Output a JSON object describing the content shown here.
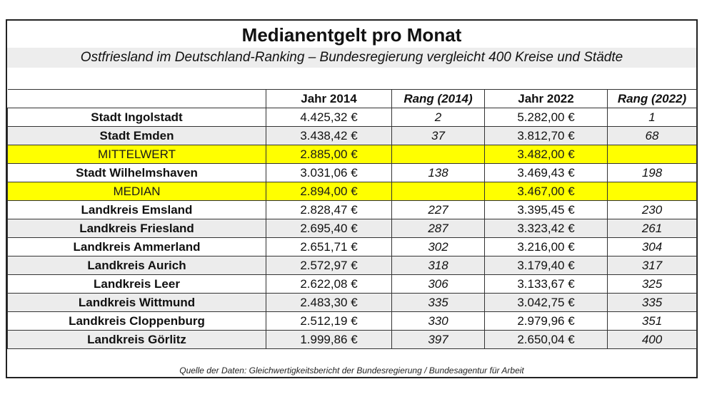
{
  "title": "Medianentgelt pro Monat",
  "subtitle": "Ostfriesland im Deutschland-Ranking – Bundesregierung vergleicht 400 Kreise und Städte",
  "headers": [
    "",
    "Jahr 2014",
    "Rang (2014)",
    "Jahr 2022",
    "Rang (2022)"
  ],
  "rows": [
    {
      "name": "Stadt Ingolstadt",
      "y2014": "4.425,32 €",
      "r2014": "2",
      "y2022": "5.282,00 €",
      "r2022": "1",
      "style": "white"
    },
    {
      "name": "Stadt Emden",
      "y2014": "3.438,42 €",
      "r2014": "37",
      "y2022": "3.812,70 €",
      "r2022": "68",
      "style": "alt"
    },
    {
      "name": "MITTELWERT",
      "y2014": "2.885,00 €",
      "r2014": "",
      "y2022": "3.482,00 €",
      "r2022": "",
      "style": "highlight"
    },
    {
      "name": "Stadt Wilhelmshaven",
      "y2014": "3.031,06 €",
      "r2014": "138",
      "y2022": "3.469,43 €",
      "r2022": "198",
      "style": "white"
    },
    {
      "name": "MEDIAN",
      "y2014": "2.894,00 €",
      "r2014": "",
      "y2022": "3.467,00 €",
      "r2022": "",
      "style": "highlight"
    },
    {
      "name": "Landkreis Emsland",
      "y2014": "2.828,47 €",
      "r2014": "227",
      "y2022": "3.395,45 €",
      "r2022": "230",
      "style": "white"
    },
    {
      "name": "Landkreis Friesland",
      "y2014": "2.695,40 €",
      "r2014": "287",
      "y2022": "3.323,42 €",
      "r2022": "261",
      "style": "alt"
    },
    {
      "name": "Landkreis Ammerland",
      "y2014": "2.651,71 €",
      "r2014": "302",
      "y2022": "3.216,00 €",
      "r2022": "304",
      "style": "white"
    },
    {
      "name": "Landkreis Aurich",
      "y2014": "2.572,97 €",
      "r2014": "318",
      "y2022": "3.179,40 €",
      "r2022": "317",
      "style": "alt"
    },
    {
      "name": "Landkreis Leer",
      "y2014": "2.622,08 €",
      "r2014": "306",
      "y2022": "3.133,67 €",
      "r2022": "325",
      "style": "white"
    },
    {
      "name": "Landkreis Wittmund",
      "y2014": "2.483,30 €",
      "r2014": "335",
      "y2022": "3.042,75 €",
      "r2022": "335",
      "style": "alt"
    },
    {
      "name": "Landkreis Cloppenburg",
      "y2014": "2.512,19 €",
      "r2014": "330",
      "y2022": "2.979,96 €",
      "r2022": "351",
      "style": "white"
    },
    {
      "name": "Landkreis Görlitz",
      "y2014": "1.999,86 €",
      "r2014": "397",
      "y2022": "2.650,04 €",
      "r2022": "400",
      "style": "alt"
    }
  ],
  "source": "Quelle der Daten: Gleichwertigkeitsbericht der Bundesregierung / Bundesagentur für Arbeit",
  "colors": {
    "highlight": "#ffff00",
    "alt_row": "#ececec",
    "subtitle_bg": "#ededed"
  }
}
